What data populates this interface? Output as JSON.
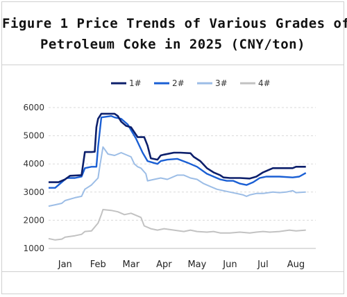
{
  "title": {
    "line1": "Figure 1 Price Trends of Various Grades of",
    "line2": "Petroleum Coke in 2025 (CNY/ton)"
  },
  "chart_data": {
    "type": "line",
    "title": "Figure 1 Price Trends of Various Grades of Petroleum Coke in 2025 (CNY/ton)",
    "xlabel": "",
    "ylabel": "",
    "x_ticks": [
      "Jan",
      "Feb",
      "Mar",
      "Apr",
      "May",
      "Jun",
      "Jul",
      "Aug"
    ],
    "x_range_months": [
      0.5,
      8.6
    ],
    "ylim": [
      1000,
      6000
    ],
    "y_ticks": [
      1000,
      2000,
      3000,
      4000,
      5000,
      6000
    ],
    "grid": "horizontal-dashed",
    "legend_position": "top",
    "series": [
      {
        "name": "1#",
        "color": "#0c1f6b",
        "points": [
          [
            0.5,
            3350
          ],
          [
            0.8,
            3350
          ],
          [
            1.0,
            3450
          ],
          [
            1.15,
            3580
          ],
          [
            1.5,
            3600
          ],
          [
            1.6,
            4420
          ],
          [
            1.8,
            4420
          ],
          [
            1.9,
            4430
          ],
          [
            1.95,
            5300
          ],
          [
            2.0,
            5600
          ],
          [
            2.1,
            5780
          ],
          [
            2.4,
            5780
          ],
          [
            2.5,
            5780
          ],
          [
            2.6,
            5700
          ],
          [
            2.7,
            5500
          ],
          [
            2.85,
            5350
          ],
          [
            3.0,
            5300
          ],
          [
            3.2,
            4950
          ],
          [
            3.4,
            4950
          ],
          [
            3.5,
            4650
          ],
          [
            3.6,
            4200
          ],
          [
            3.8,
            4150
          ],
          [
            3.9,
            4300
          ],
          [
            4.0,
            4330
          ],
          [
            4.3,
            4400
          ],
          [
            4.5,
            4400
          ],
          [
            4.8,
            4380
          ],
          [
            4.9,
            4250
          ],
          [
            5.1,
            4100
          ],
          [
            5.3,
            3850
          ],
          [
            5.5,
            3700
          ],
          [
            5.7,
            3600
          ],
          [
            5.8,
            3520
          ],
          [
            6.0,
            3500
          ],
          [
            6.3,
            3500
          ],
          [
            6.6,
            3480
          ],
          [
            6.8,
            3550
          ],
          [
            7.0,
            3700
          ],
          [
            7.3,
            3850
          ],
          [
            7.5,
            3850
          ],
          [
            7.9,
            3850
          ],
          [
            8.0,
            3900
          ],
          [
            8.3,
            3900
          ]
        ]
      },
      {
        "name": "2#",
        "color": "#1a5fd4",
        "points": [
          [
            0.5,
            3150
          ],
          [
            0.7,
            3150
          ],
          [
            0.9,
            3350
          ],
          [
            1.05,
            3500
          ],
          [
            1.3,
            3500
          ],
          [
            1.5,
            3550
          ],
          [
            1.6,
            3850
          ],
          [
            1.8,
            3900
          ],
          [
            1.95,
            3900
          ],
          [
            2.0,
            4600
          ],
          [
            2.1,
            5650
          ],
          [
            2.4,
            5700
          ],
          [
            2.5,
            5650
          ],
          [
            2.7,
            5600
          ],
          [
            2.9,
            5400
          ],
          [
            3.0,
            5200
          ],
          [
            3.15,
            4900
          ],
          [
            3.35,
            4400
          ],
          [
            3.5,
            4100
          ],
          [
            3.65,
            4050
          ],
          [
            3.8,
            4000
          ],
          [
            3.9,
            4100
          ],
          [
            4.1,
            4150
          ],
          [
            4.4,
            4180
          ],
          [
            4.7,
            4050
          ],
          [
            5.0,
            3900
          ],
          [
            5.3,
            3650
          ],
          [
            5.5,
            3550
          ],
          [
            5.7,
            3450
          ],
          [
            5.9,
            3400
          ],
          [
            6.1,
            3400
          ],
          [
            6.3,
            3300
          ],
          [
            6.5,
            3250
          ],
          [
            6.7,
            3350
          ],
          [
            6.9,
            3500
          ],
          [
            7.1,
            3550
          ],
          [
            7.5,
            3550
          ],
          [
            7.9,
            3520
          ],
          [
            8.1,
            3550
          ],
          [
            8.3,
            3680
          ]
        ]
      },
      {
        "name": "3#",
        "color": "#9cbde6",
        "points": [
          [
            0.5,
            2500
          ],
          [
            0.7,
            2550
          ],
          [
            0.9,
            2600
          ],
          [
            1.0,
            2700
          ],
          [
            1.3,
            2800
          ],
          [
            1.5,
            2850
          ],
          [
            1.6,
            3100
          ],
          [
            1.8,
            3250
          ],
          [
            2.0,
            3500
          ],
          [
            2.05,
            3900
          ],
          [
            2.15,
            4600
          ],
          [
            2.3,
            4350
          ],
          [
            2.5,
            4300
          ],
          [
            2.7,
            4400
          ],
          [
            2.8,
            4350
          ],
          [
            3.0,
            4250
          ],
          [
            3.1,
            4000
          ],
          [
            3.2,
            3900
          ],
          [
            3.3,
            3850
          ],
          [
            3.45,
            3650
          ],
          [
            3.5,
            3400
          ],
          [
            3.7,
            3450
          ],
          [
            3.9,
            3500
          ],
          [
            4.1,
            3450
          ],
          [
            4.4,
            3600
          ],
          [
            4.6,
            3600
          ],
          [
            4.8,
            3500
          ],
          [
            5.0,
            3450
          ],
          [
            5.2,
            3300
          ],
          [
            5.4,
            3200
          ],
          [
            5.6,
            3100
          ],
          [
            5.8,
            3050
          ],
          [
            6.0,
            3000
          ],
          [
            6.2,
            2950
          ],
          [
            6.4,
            2900
          ],
          [
            6.5,
            2850
          ],
          [
            6.6,
            2900
          ],
          [
            6.8,
            2950
          ],
          [
            7.0,
            2950
          ],
          [
            7.3,
            3000
          ],
          [
            7.5,
            2980
          ],
          [
            7.7,
            3000
          ],
          [
            7.9,
            3050
          ],
          [
            8.0,
            2980
          ],
          [
            8.3,
            3000
          ]
        ]
      },
      {
        "name": "4#",
        "color": "#c2c2c2",
        "points": [
          [
            0.5,
            1350
          ],
          [
            0.7,
            1300
          ],
          [
            0.9,
            1330
          ],
          [
            1.0,
            1400
          ],
          [
            1.3,
            1450
          ],
          [
            1.5,
            1500
          ],
          [
            1.6,
            1600
          ],
          [
            1.8,
            1620
          ],
          [
            2.0,
            1900
          ],
          [
            2.1,
            2200
          ],
          [
            2.15,
            2380
          ],
          [
            2.4,
            2350
          ],
          [
            2.6,
            2300
          ],
          [
            2.8,
            2200
          ],
          [
            3.0,
            2250
          ],
          [
            3.1,
            2200
          ],
          [
            3.3,
            2100
          ],
          [
            3.4,
            1800
          ],
          [
            3.6,
            1700
          ],
          [
            3.8,
            1650
          ],
          [
            4.0,
            1700
          ],
          [
            4.3,
            1650
          ],
          [
            4.6,
            1600
          ],
          [
            4.8,
            1650
          ],
          [
            5.0,
            1600
          ],
          [
            5.3,
            1580
          ],
          [
            5.5,
            1600
          ],
          [
            5.7,
            1550
          ],
          [
            6.0,
            1550
          ],
          [
            6.3,
            1580
          ],
          [
            6.6,
            1550
          ],
          [
            6.8,
            1580
          ],
          [
            7.0,
            1600
          ],
          [
            7.2,
            1580
          ],
          [
            7.5,
            1600
          ],
          [
            7.8,
            1650
          ],
          [
            8.0,
            1620
          ],
          [
            8.3,
            1650
          ]
        ]
      }
    ]
  }
}
